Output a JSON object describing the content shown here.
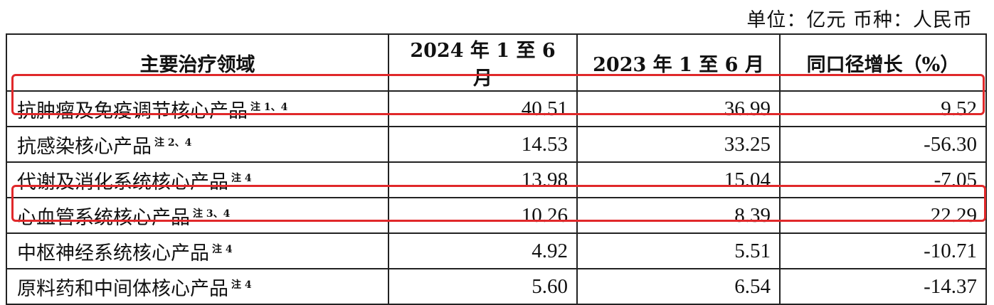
{
  "unit_label": "单位：亿元  币种：人民币",
  "table": {
    "headers": [
      "主要治疗领域",
      "2024 年 1 至 6 月",
      "2023 年 1 至 6 月",
      "同口径增长（%）"
    ],
    "rows": [
      {
        "name": "抗肿瘤及免疫调节核心产品",
        "note": "注 1、4",
        "y2024": "40.51",
        "y2023": "36.99",
        "growth": "9.52",
        "highlighted": true
      },
      {
        "name": "抗感染核心产品",
        "note": "注 2、4",
        "y2024": "14.53",
        "y2023": "33.25",
        "growth": "-56.30",
        "highlighted": false
      },
      {
        "name": "代谢及消化系统核心产品",
        "note": "注 4",
        "y2024": "13.98",
        "y2023": "15.04",
        "growth": "-7.05",
        "highlighted": false
      },
      {
        "name": "心血管系统核心产品",
        "note": "注 3、4",
        "y2024": "10.26",
        "y2023": "8.39",
        "growth": "22.29",
        "highlighted": true
      },
      {
        "name": "中枢神经系统核心产品",
        "note": "注 4",
        "y2024": "4.92",
        "y2023": "5.51",
        "growth": "-10.71",
        "highlighted": false
      },
      {
        "name": "原料药和中间体核心产品",
        "note": "注 4",
        "y2024": "5.60",
        "y2023": "6.54",
        "growth": "-14.37",
        "highlighted": false
      }
    ]
  },
  "highlight_color": "#e0282a"
}
